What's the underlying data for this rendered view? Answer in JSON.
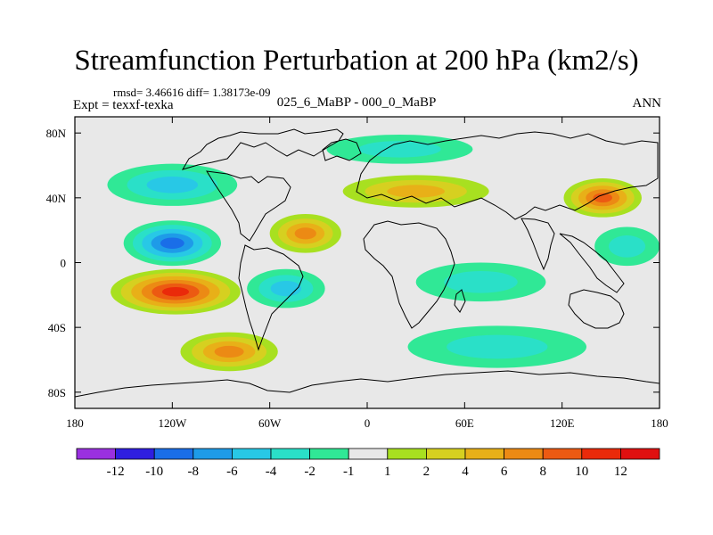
{
  "chart_data": {
    "type": "heatmap",
    "title": "Streamfunction Perturbation at 200 hPa (km2/s)",
    "stats_text": "rmsd= 3.46616 diff= 1.38173e-09",
    "expt_text": "Expt = texxf-texka",
    "subtitle": "025_6_MaBP - 000_0_MaBP",
    "season": "ANN",
    "xlim": [
      -180,
      180
    ],
    "ylim": [
      -90,
      90
    ],
    "x_ticks": [
      {
        "value": -180,
        "label": "180"
      },
      {
        "value": -120,
        "label": "120W"
      },
      {
        "value": -60,
        "label": "60W"
      },
      {
        "value": 0,
        "label": "0"
      },
      {
        "value": 60,
        "label": "60E"
      },
      {
        "value": 120,
        "label": "120E"
      },
      {
        "value": 180,
        "label": "180"
      }
    ],
    "y_ticks": [
      {
        "value": 80,
        "label": "80N"
      },
      {
        "value": 40,
        "label": "40N"
      },
      {
        "value": 0,
        "label": "0"
      },
      {
        "value": -40,
        "label": "40S"
      },
      {
        "value": -80,
        "label": "80S"
      }
    ],
    "colorbar": {
      "levels": [
        "-12",
        "-10",
        "-8",
        "-6",
        "-4",
        "-2",
        "-1",
        "1",
        "2",
        "4",
        "6",
        "8",
        "10",
        "12"
      ],
      "colors": [
        "#9a30e0",
        "#2f1ee0",
        "#1a6ee8",
        "#1e9be8",
        "#28c8e6",
        "#2ae0c8",
        "#30e896",
        "#e8e8e8",
        "#a8e020",
        "#d6d020",
        "#e8b018",
        "#ec8a14",
        "#ec5a12",
        "#ea2a0a",
        "#e01010"
      ]
    },
    "features": [
      {
        "name": "strong-negative-east-pacific",
        "lon": -120,
        "lat": 12,
        "rx": 30,
        "ry": 14,
        "value": -10
      },
      {
        "name": "negative-north-pacific",
        "lon": -120,
        "lat": 48,
        "rx": 40,
        "ry": 13,
        "value": -6
      },
      {
        "name": "strong-positive-south-pacific",
        "lon": -118,
        "lat": -18,
        "rx": 40,
        "ry": 14,
        "value": 11
      },
      {
        "name": "positive-tropical-atlantic",
        "lon": -38,
        "lat": 18,
        "rx": 22,
        "ry": 12,
        "value": 8
      },
      {
        "name": "negative-south-atlantic",
        "lon": -50,
        "lat": -16,
        "rx": 24,
        "ry": 12,
        "value": -6
      },
      {
        "name": "positive-southern-pacific-high-lat",
        "lon": -85,
        "lat": -55,
        "rx": 30,
        "ry": 12,
        "value": 8
      },
      {
        "name": "negative-southern-ocean-indian",
        "lon": 80,
        "lat": -52,
        "rx": 55,
        "ry": 13,
        "value": -4
      },
      {
        "name": "negative-indian-ocean",
        "lon": 70,
        "lat": -12,
        "rx": 40,
        "ry": 12,
        "value": -3
      },
      {
        "name": "positive-north-pacific-east-asia",
        "lon": 145,
        "lat": 40,
        "rx": 24,
        "ry": 12,
        "value": 9
      },
      {
        "name": "positive-eurasia",
        "lon": 30,
        "lat": 44,
        "rx": 45,
        "ry": 10,
        "value": 5
      },
      {
        "name": "negative-arctic",
        "lon": 20,
        "lat": 70,
        "rx": 45,
        "ry": 9,
        "value": -3
      },
      {
        "name": "negative-west-pacific",
        "lon": 160,
        "lat": 10,
        "rx": 20,
        "ry": 12,
        "value": -3
      }
    ]
  }
}
